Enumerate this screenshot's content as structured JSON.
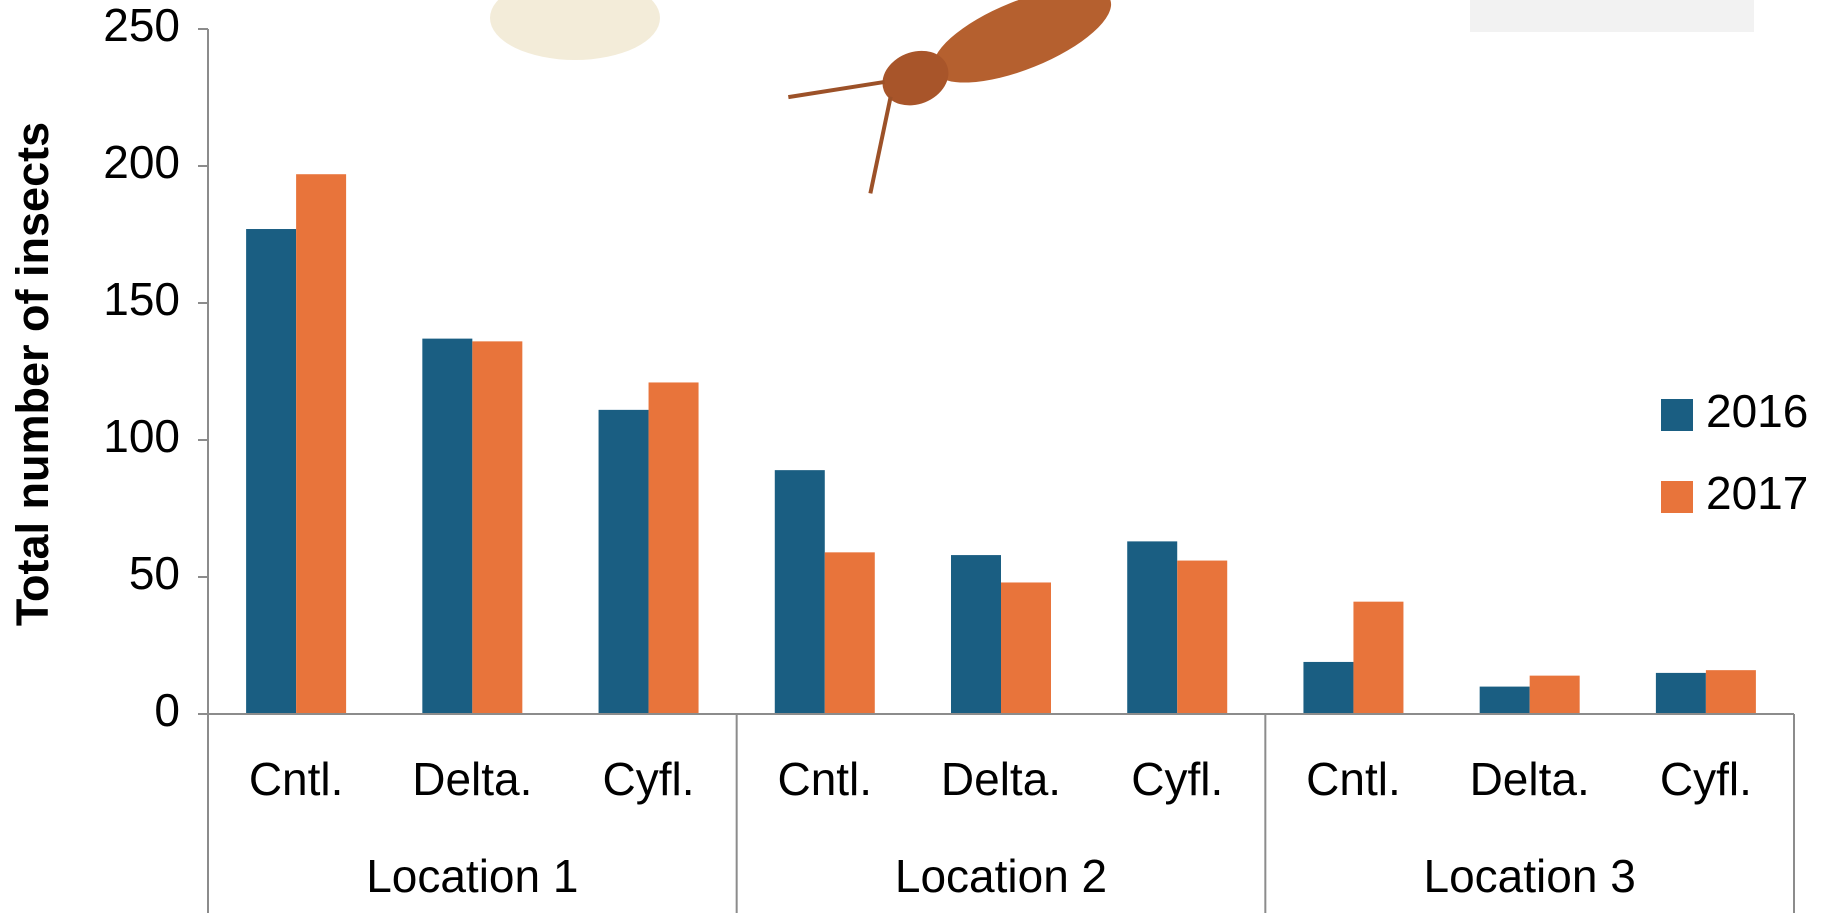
{
  "chart_data": {
    "type": "bar",
    "y_label": "Total number of insects",
    "categories": [
      "Cntl.",
      "Delta.",
      "Cyfl.",
      "Cntl.",
      "Delta.",
      "Cyfl.",
      "Cntl.",
      "Delta.",
      "Cyfl."
    ],
    "groups": [
      "Location 1",
      "Location 2",
      "Location 3"
    ],
    "series": [
      {
        "name": "2016",
        "color": "#1a5e82",
        "values": [
          177,
          137,
          111,
          89,
          58,
          63,
          19,
          10,
          15
        ]
      },
      {
        "name": "2017",
        "color": "#e8743b",
        "values": [
          197,
          136,
          121,
          59,
          48,
          56,
          41,
          14,
          16
        ]
      }
    ],
    "ylim": [
      0,
      250
    ],
    "yticks": [
      0,
      50,
      100,
      150,
      200,
      250
    ],
    "legend": "right"
  }
}
